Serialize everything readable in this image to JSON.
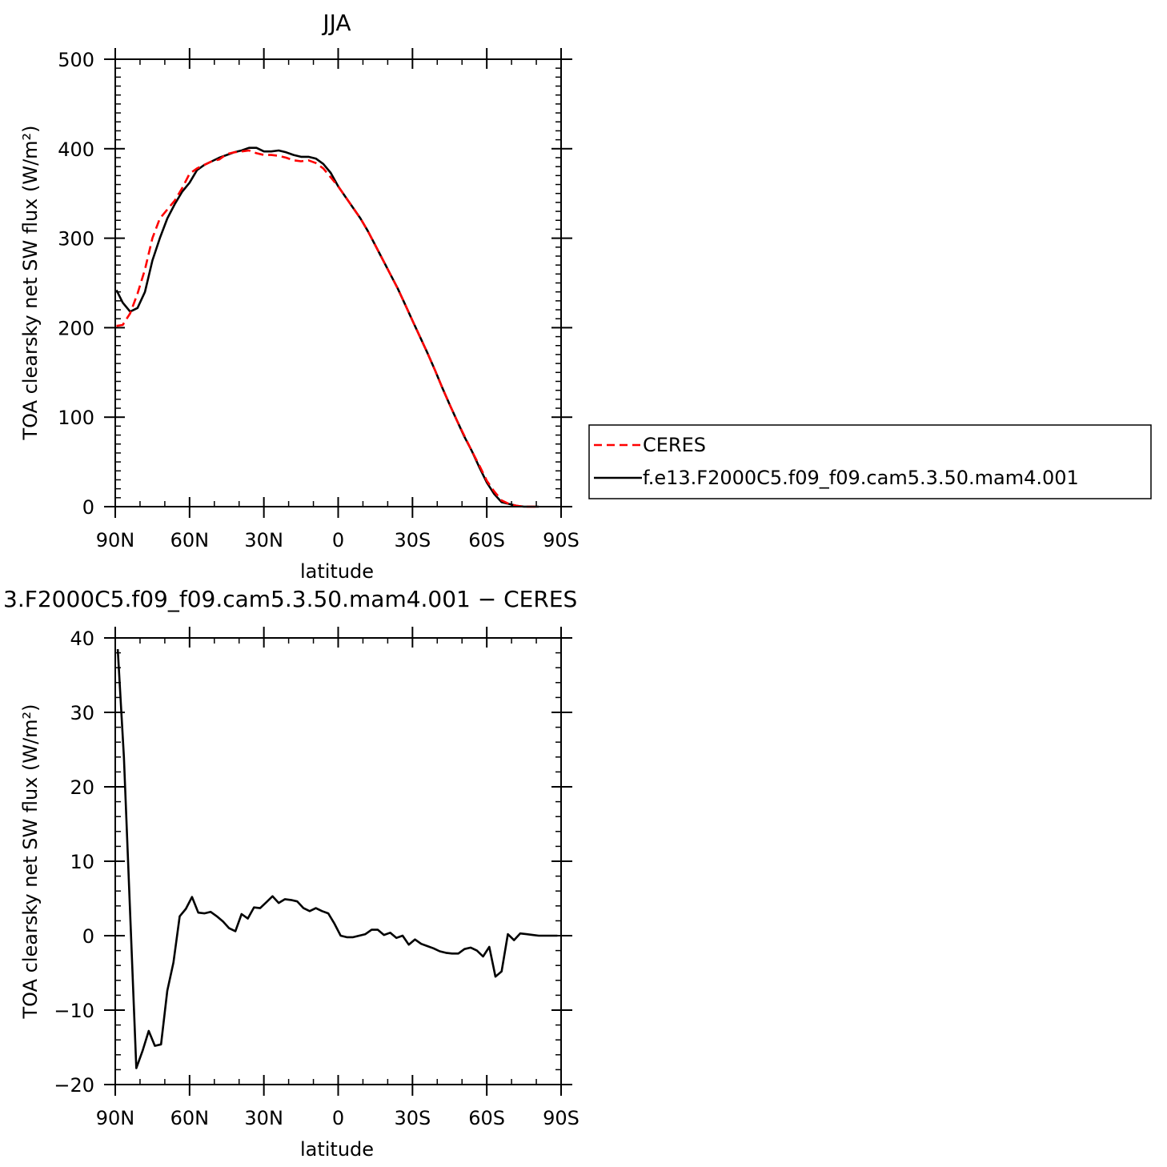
{
  "chart_data": [
    {
      "type": "line",
      "title": "JJA",
      "xlabel": "latitude",
      "ylabel": "TOA clearsky net SW flux (W/m²)",
      "xlim": [
        90,
        -90
      ],
      "ylim": [
        0,
        500
      ],
      "xticks": [
        {
          "value": 90,
          "label": "90N"
        },
        {
          "value": 60,
          "label": "60N"
        },
        {
          "value": 30,
          "label": "30N"
        },
        {
          "value": 0,
          "label": "0"
        },
        {
          "value": -30,
          "label": "30S"
        },
        {
          "value": -60,
          "label": "60S"
        },
        {
          "value": -90,
          "label": "90S"
        }
      ],
      "yticks": [
        0,
        100,
        200,
        300,
        400,
        500
      ],
      "legend": {
        "placement": "right"
      },
      "series": [
        {
          "name": "CERES",
          "color": "#ff0000",
          "dash": "dashed",
          "points": [
            [
              89.5,
              202
            ],
            [
              87,
              203
            ],
            [
              84,
              216
            ],
            [
              81,
              238
            ],
            [
              78,
              265
            ],
            [
              75,
              300
            ],
            [
              72,
              322
            ],
            [
              69,
              332
            ],
            [
              66,
              342
            ],
            [
              63,
              356
            ],
            [
              60,
              372
            ],
            [
              57,
              378
            ],
            [
              54,
              382
            ],
            [
              51,
              386
            ],
            [
              48,
              388
            ],
            [
              45,
              394
            ],
            [
              42,
              396
            ],
            [
              39,
              397
            ],
            [
              36,
              398
            ],
            [
              33,
              395
            ],
            [
              30,
              393
            ],
            [
              27,
              393
            ],
            [
              24,
              392
            ],
            [
              21,
              390
            ],
            [
              18,
              387
            ],
            [
              15,
              386
            ],
            [
              12,
              387
            ],
            [
              9,
              384
            ],
            [
              6,
              378
            ],
            [
              3,
              368
            ],
            [
              0,
              358
            ],
            [
              -3,
              346
            ],
            [
              -6,
              334
            ],
            [
              -9,
              322
            ],
            [
              -12,
              308
            ],
            [
              -15,
              292
            ],
            [
              -18,
              276
            ],
            [
              -21,
              260
            ],
            [
              -24,
              244
            ],
            [
              -27,
              226
            ],
            [
              -30,
              208
            ],
            [
              -33,
              190
            ],
            [
              -36,
              172
            ],
            [
              -39,
              153
            ],
            [
              -42,
              133
            ],
            [
              -45,
              114
            ],
            [
              -48,
              96
            ],
            [
              -51,
              79
            ],
            [
              -54,
              62
            ],
            [
              -57,
              46
            ],
            [
              -60,
              29
            ],
            [
              -63,
              17
            ],
            [
              -66,
              7
            ],
            [
              -69,
              3
            ],
            [
              -72,
              1
            ],
            [
              -75,
              0
            ],
            [
              -78,
              0
            ],
            [
              -81,
              0
            ]
          ]
        },
        {
          "name": "f.e13.F2000C5.f09_f09.cam5.3.50.mam4.001",
          "color": "#000000",
          "dash": "solid",
          "points": [
            [
              89.5,
              242
            ],
            [
              87,
              228
            ],
            [
              84,
              218
            ],
            [
              81,
              222
            ],
            [
              78,
              240
            ],
            [
              75,
              275
            ],
            [
              72,
              300
            ],
            [
              69,
              322
            ],
            [
              66,
              338
            ],
            [
              63,
              352
            ],
            [
              60,
              362
            ],
            [
              57,
              376
            ],
            [
              54,
              382
            ],
            [
              51,
              386
            ],
            [
              48,
              390
            ],
            [
              45,
              393
            ],
            [
              42,
              396
            ],
            [
              39,
              398
            ],
            [
              36,
              401
            ],
            [
              33,
              401
            ],
            [
              30,
              397
            ],
            [
              27,
              397
            ],
            [
              24,
              398
            ],
            [
              21,
              396
            ],
            [
              18,
              393
            ],
            [
              15,
              391
            ],
            [
              12,
              391
            ],
            [
              9,
              389
            ],
            [
              6,
              383
            ],
            [
              3,
              373
            ],
            [
              0,
              358
            ],
            [
              -3,
              346
            ],
            [
              -6,
              334
            ],
            [
              -9,
              322
            ],
            [
              -12,
              308
            ],
            [
              -15,
              292
            ],
            [
              -18,
              276
            ],
            [
              -21,
              260
            ],
            [
              -24,
              244
            ],
            [
              -27,
              226
            ],
            [
              -30,
              208
            ],
            [
              -33,
              190
            ],
            [
              -36,
              172
            ],
            [
              -39,
              153
            ],
            [
              -42,
              133
            ],
            [
              -45,
              114
            ],
            [
              -48,
              96
            ],
            [
              -51,
              78
            ],
            [
              -54,
              62
            ],
            [
              -57,
              44
            ],
            [
              -60,
              27
            ],
            [
              -63,
              14
            ],
            [
              -66,
              5
            ],
            [
              -69,
              3
            ],
            [
              -72,
              1
            ],
            [
              -75,
              0
            ],
            [
              -78,
              0
            ],
            [
              -81,
              0
            ]
          ]
        }
      ]
    },
    {
      "type": "line",
      "title": "3.F2000C5.f09_f09.cam5.3.50.mam4.001  −  CERES",
      "xlabel": "latitude",
      "ylabel": "TOA clearsky net SW flux (W/m²)",
      "xlim": [
        90,
        -90
      ],
      "ylim": [
        -20,
        40
      ],
      "xticks": [
        {
          "value": 90,
          "label": "90N"
        },
        {
          "value": 60,
          "label": "60N"
        },
        {
          "value": 30,
          "label": "30N"
        },
        {
          "value": 0,
          "label": "0"
        },
        {
          "value": -30,
          "label": "30S"
        },
        {
          "value": -60,
          "label": "60S"
        },
        {
          "value": -90,
          "label": "90S"
        }
      ],
      "yticks": [
        {
          "value": 40,
          "label": "40"
        },
        {
          "value": 30,
          "label": "30"
        },
        {
          "value": 20,
          "label": "20"
        },
        {
          "value": 10,
          "label": "10"
        },
        {
          "value": 0,
          "label": "0"
        },
        {
          "value": -10,
          "label": "−10"
        },
        {
          "value": -20,
          "label": "−20"
        }
      ],
      "series": [
        {
          "color": "#000000",
          "dash": "solid",
          "points": [
            [
              89,
              38.5
            ],
            [
              86.5,
              24
            ],
            [
              84,
              3
            ],
            [
              81.5,
              -17.8
            ],
            [
              79,
              -15.5
            ],
            [
              76.5,
              -12.8
            ],
            [
              74,
              -14.8
            ],
            [
              71.5,
              -14.6
            ],
            [
              69,
              -7.4
            ],
            [
              66.5,
              -3.6
            ],
            [
              64,
              2.6
            ],
            [
              61.5,
              3.6
            ],
            [
              59,
              5.2
            ],
            [
              56.5,
              3.1
            ],
            [
              54,
              3.0
            ],
            [
              51.5,
              3.2
            ],
            [
              49,
              2.6
            ],
            [
              46.5,
              1.9
            ],
            [
              44,
              1
            ],
            [
              41.5,
              0.6
            ],
            [
              39,
              2.9
            ],
            [
              36.5,
              2.3
            ],
            [
              34,
              3.8
            ],
            [
              31.5,
              3.7
            ],
            [
              29,
              4.5
            ],
            [
              26.5,
              5.3
            ],
            [
              24,
              4.4
            ],
            [
              21.5,
              4.9
            ],
            [
              19,
              4.8
            ],
            [
              16.5,
              4.6
            ],
            [
              14,
              3.7
            ],
            [
              11.5,
              3.3
            ],
            [
              9,
              3.7
            ],
            [
              6.5,
              3.3
            ],
            [
              4,
              3.0
            ],
            [
              1.5,
              1.6
            ],
            [
              -1,
              0.0
            ],
            [
              -3.5,
              -0.2
            ],
            [
              -6,
              -0.2
            ],
            [
              -8.5,
              0.0
            ],
            [
              -11,
              0.2
            ],
            [
              -13.5,
              0.8
            ],
            [
              -16,
              0.8
            ],
            [
              -18.5,
              0.1
            ],
            [
              -21,
              0.4
            ],
            [
              -23.5,
              -0.3
            ],
            [
              -26,
              0.0
            ],
            [
              -28.5,
              -1.2
            ],
            [
              -31,
              -0.5
            ],
            [
              -33.5,
              -1.1
            ],
            [
              -36,
              -1.4
            ],
            [
              -38.5,
              -1.7
            ],
            [
              -41,
              -2.1
            ],
            [
              -43.5,
              -2.3
            ],
            [
              -46,
              -2.4
            ],
            [
              -48.5,
              -2.4
            ],
            [
              -51,
              -1.8
            ],
            [
              -53.5,
              -1.6
            ],
            [
              -56,
              -2.0
            ],
            [
              -58.5,
              -2.8
            ],
            [
              -61,
              -1.5
            ],
            [
              -63.5,
              -5.5
            ],
            [
              -66,
              -4.8
            ],
            [
              -68.5,
              0.2
            ],
            [
              -71,
              -0.6
            ],
            [
              -73.5,
              0.3
            ],
            [
              -76,
              0.2
            ],
            [
              -78.5,
              0.1
            ],
            [
              -81,
              0.0
            ],
            [
              -83.5,
              0.0
            ],
            [
              -86,
              0.0
            ],
            [
              -88.5,
              0.0
            ]
          ]
        }
      ]
    }
  ]
}
